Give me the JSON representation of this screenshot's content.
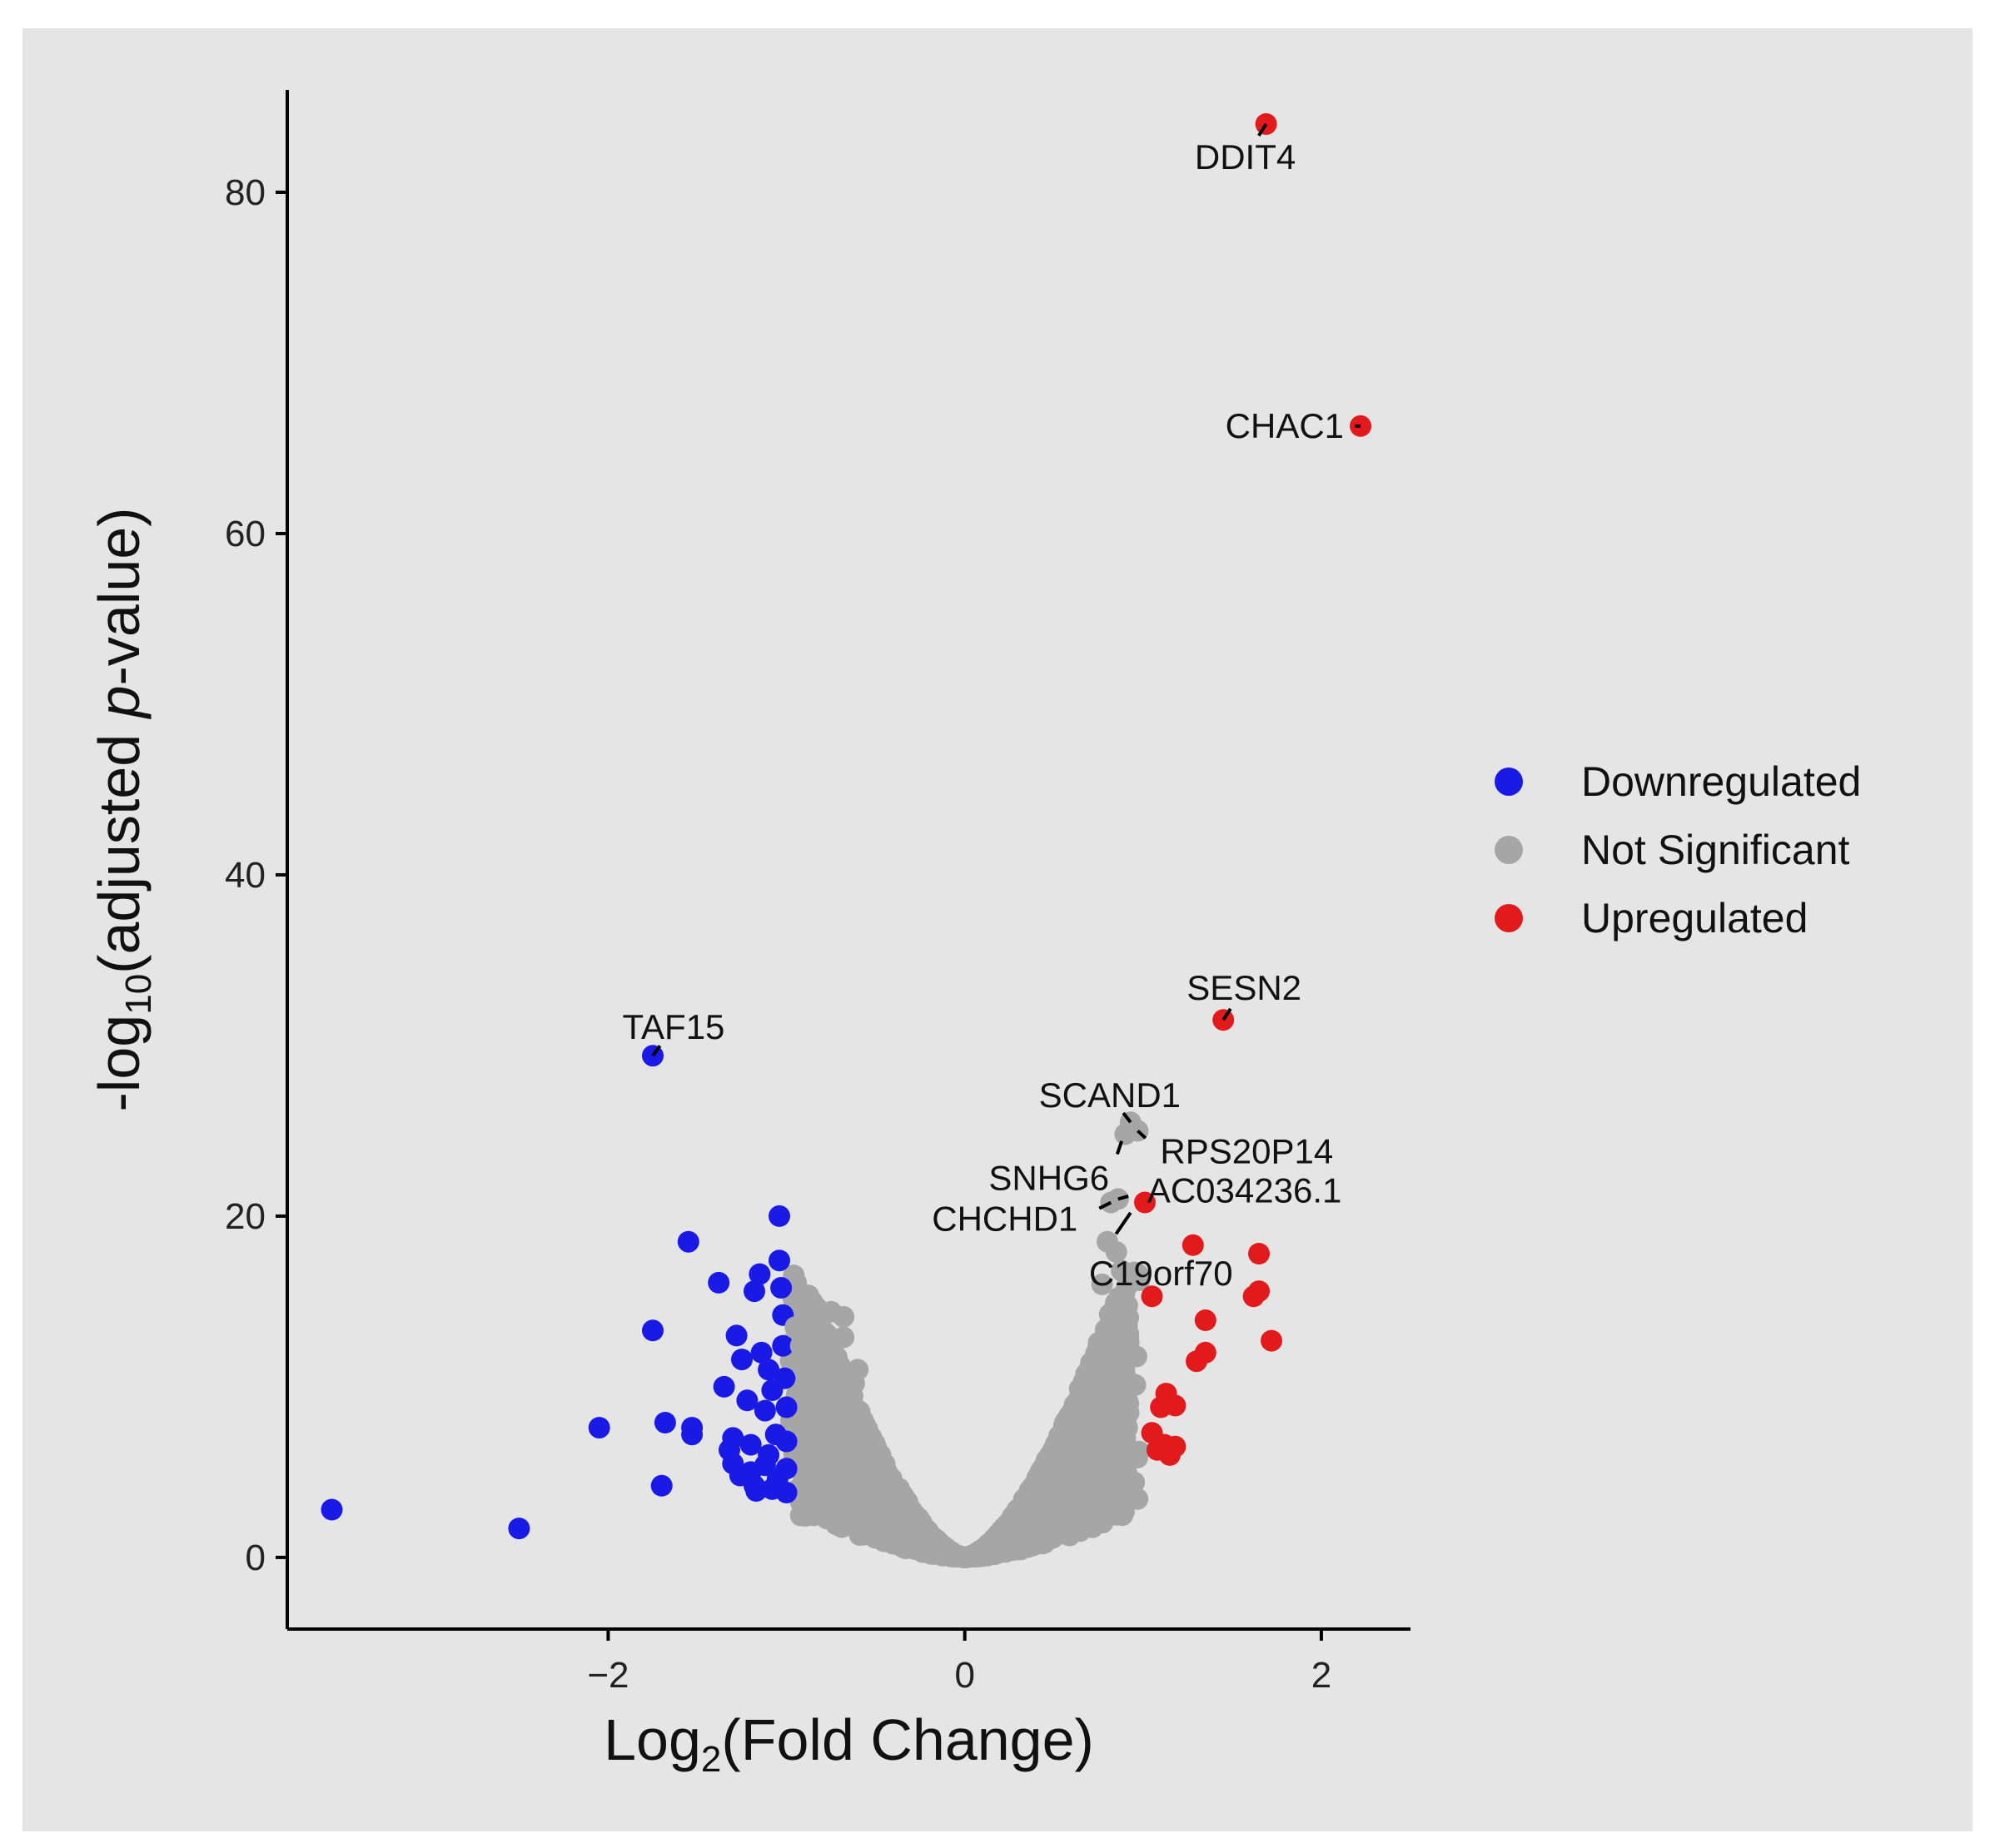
{
  "chart_data": {
    "type": "scatter",
    "title": "",
    "xlabel": "Log2(Fold Change)",
    "ylabel": "-log10(adjusted p-value)",
    "xlim": [
      -3.8,
      2.5
    ],
    "ylim": [
      -4.2,
      86
    ],
    "x_ticks": [
      -2,
      0,
      2
    ],
    "x_tick_labels": [
      "−2",
      "0",
      "2"
    ],
    "y_ticks": [
      0,
      20,
      40,
      60,
      80
    ],
    "y_tick_labels": [
      "0",
      "20",
      "40",
      "60",
      "80"
    ],
    "grid": false,
    "legend_position": "right",
    "legend": [
      "Downregulated",
      "Not Significant",
      "Upregulated"
    ],
    "colors": {
      "Downregulated": "#1a1ae6",
      "Not Significant": "#a6a6a6",
      "Upregulated": "#e31a1c",
      "background": "#e5e5e5",
      "axis": "#000000"
    },
    "series": [
      {
        "name": "Downregulated",
        "points": [
          [
            -3.55,
            2.8
          ],
          [
            -2.5,
            1.7
          ],
          [
            -2.05,
            7.6
          ],
          [
            -1.75,
            29.4
          ],
          [
            -1.75,
            13.3
          ],
          [
            -1.7,
            4.2
          ],
          [
            -1.68,
            7.9
          ],
          [
            -1.55,
            18.5
          ],
          [
            -1.53,
            7.6
          ],
          [
            -1.53,
            7.2
          ],
          [
            -1.38,
            16.1
          ],
          [
            -1.35,
            10.0
          ],
          [
            -1.32,
            6.3
          ],
          [
            -1.3,
            5.5
          ],
          [
            -1.28,
            13.0
          ],
          [
            -1.25,
            11.6
          ],
          [
            -1.22,
            9.2
          ],
          [
            -1.2,
            5.0
          ],
          [
            -1.18,
            15.6
          ],
          [
            -1.17,
            3.9
          ],
          [
            -1.15,
            16.6
          ],
          [
            -1.14,
            12.0
          ],
          [
            -1.12,
            8.6
          ],
          [
            -1.1,
            6.0
          ],
          [
            -1.1,
            11.0
          ],
          [
            -1.08,
            9.8
          ],
          [
            -1.06,
            7.2
          ],
          [
            -1.05,
            4.6
          ],
          [
            -1.04,
            20.0
          ],
          [
            -1.04,
            17.4
          ],
          [
            -1.03,
            15.8
          ],
          [
            -1.02,
            14.2
          ],
          [
            -1.02,
            12.4
          ],
          [
            -1.01,
            10.5
          ],
          [
            -1.0,
            8.8
          ],
          [
            -1.0,
            6.8
          ],
          [
            -1.0,
            5.2
          ],
          [
            -1.0,
            3.8
          ],
          [
            -1.12,
            5.4
          ],
          [
            -1.2,
            6.6
          ],
          [
            -1.26,
            4.8
          ],
          [
            -1.3,
            7.0
          ],
          [
            -1.18,
            4.2
          ],
          [
            -1.08,
            4.0
          ]
        ]
      },
      {
        "name": "Upregulated",
        "points": [
          [
            1.69,
            84.0
          ],
          [
            2.22,
            66.3
          ],
          [
            1.45,
            31.5
          ],
          [
            1.01,
            20.8
          ],
          [
            1.28,
            18.3
          ],
          [
            1.65,
            17.8
          ],
          [
            1.65,
            15.6
          ],
          [
            1.62,
            15.3
          ],
          [
            1.05,
            15.3
          ],
          [
            1.35,
            13.9
          ],
          [
            1.72,
            12.7
          ],
          [
            1.35,
            12.0
          ],
          [
            1.3,
            11.5
          ],
          [
            1.13,
            9.6
          ],
          [
            1.18,
            8.9
          ],
          [
            1.1,
            8.8
          ],
          [
            1.05,
            7.3
          ],
          [
            1.12,
            6.6
          ],
          [
            1.15,
            6.0
          ],
          [
            1.08,
            6.3
          ],
          [
            1.18,
            6.5
          ]
        ]
      },
      {
        "name": "Not Significant",
        "note": "dense V-shaped cloud; labeled points listed explicitly",
        "points": [
          [
            0.93,
            25.5
          ],
          [
            0.97,
            25.0
          ],
          [
            0.9,
            24.8
          ],
          [
            0.82,
            20.8
          ],
          [
            0.86,
            21.0
          ],
          [
            0.8,
            18.5
          ],
          [
            0.85,
            17.9
          ],
          [
            0.88,
            16.8
          ],
          [
            0.95,
            16.7
          ],
          [
            0.77,
            16.0
          ],
          [
            0.91,
            15.9
          ],
          [
            0.97,
            16.6
          ],
          [
            -0.95,
            13.5
          ],
          [
            -0.92,
            12.4
          ],
          [
            -0.75,
            14.4
          ],
          [
            -0.68,
            14.1
          ],
          [
            -0.68,
            12.9
          ],
          [
            -0.65,
            10.7
          ],
          [
            -0.62,
            10.2
          ],
          [
            -0.6,
            11.0
          ],
          [
            0.95,
            4.4
          ],
          [
            0.88,
            3.4
          ],
          [
            0.9,
            7.0
          ],
          [
            0.85,
            8.0
          ]
        ]
      }
    ],
    "annotations": [
      {
        "text": "DDIT4",
        "x": 1.69,
        "y": 84.0
      },
      {
        "text": "CHAC1",
        "x": 2.22,
        "y": 66.3
      },
      {
        "text": "SESN2",
        "x": 1.45,
        "y": 31.5
      },
      {
        "text": "TAF15",
        "x": -1.75,
        "y": 29.4
      },
      {
        "text": "SCAND1",
        "x": 0.93,
        "y": 25.5
      },
      {
        "text": "RPS20P14",
        "x": 0.97,
        "y": 25.0
      },
      {
        "text": "SNHG6",
        "x": 0.88,
        "y": 24.4
      },
      {
        "text": "AC034236.1",
        "x": 0.86,
        "y": 21.0
      },
      {
        "text": "CHCHD1",
        "x": 0.82,
        "y": 20.8
      },
      {
        "text": "C19orf70",
        "x": 0.93,
        "y": 20.2
      }
    ]
  }
}
